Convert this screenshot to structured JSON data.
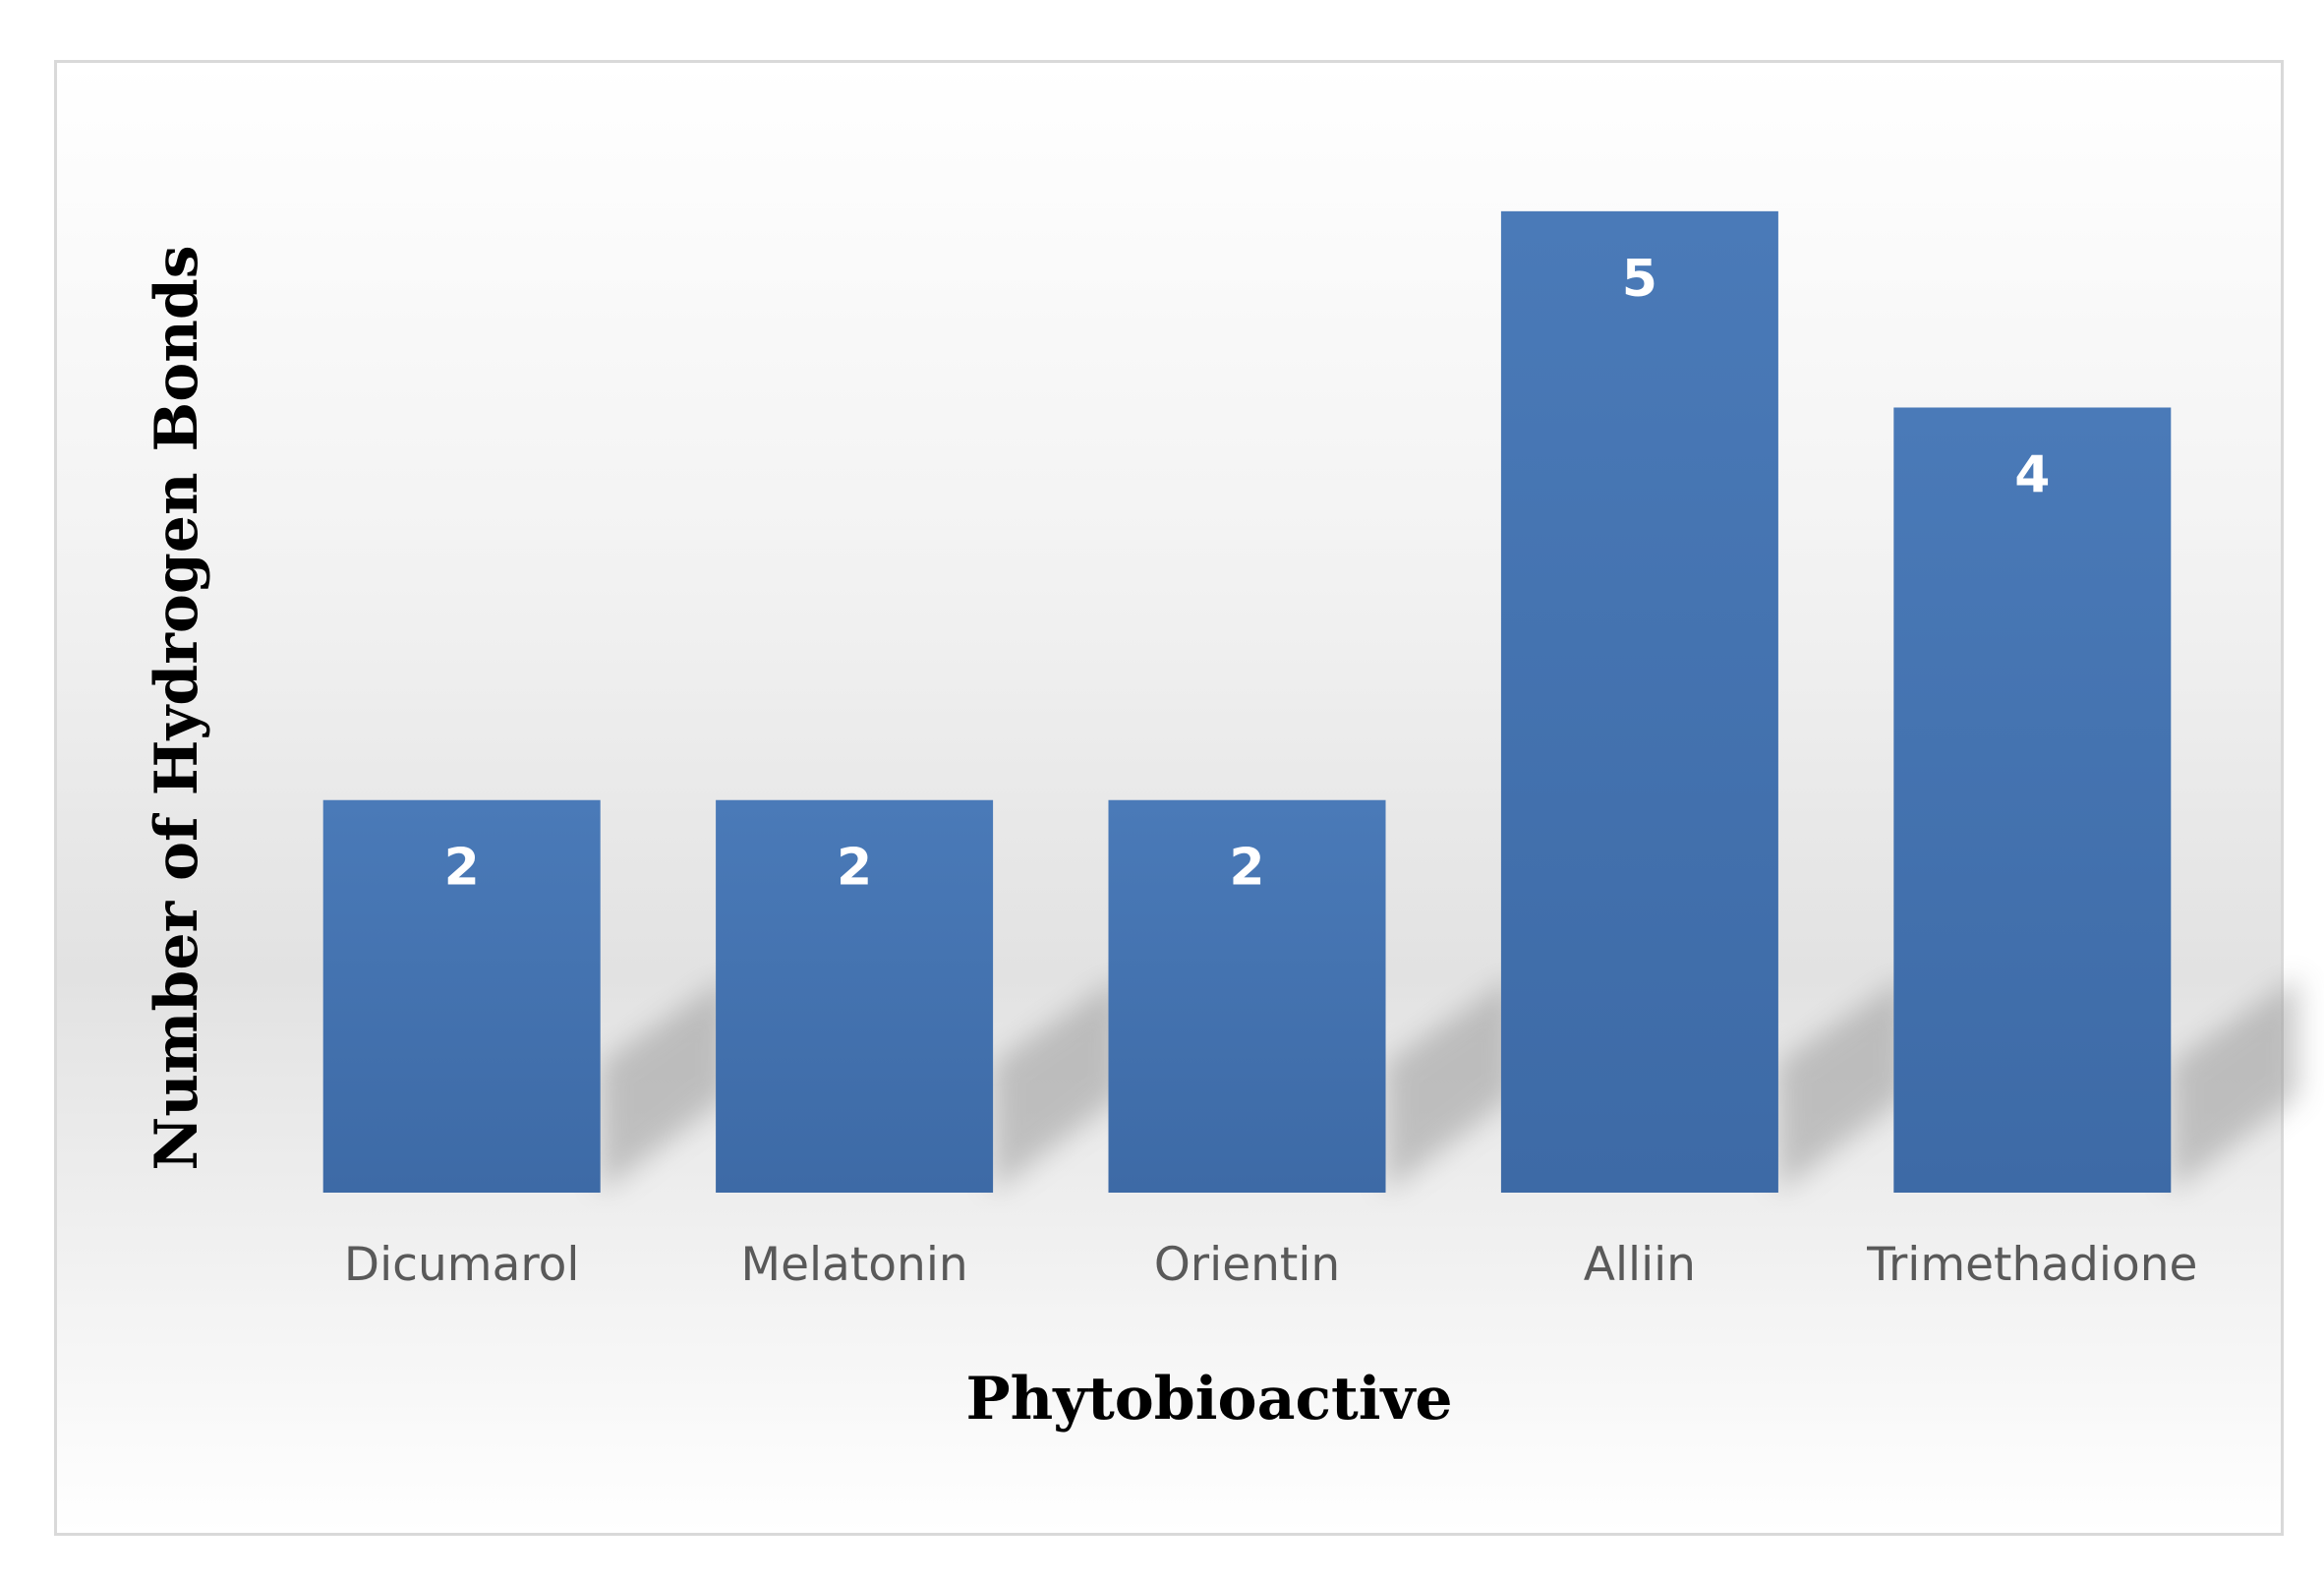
{
  "chart_data": {
    "type": "bar",
    "title": "",
    "xlabel": "Phytobioactive",
    "ylabel": "Number of Hydrogen Bonds",
    "categories": [
      "Dicumarol",
      "Melatonin",
      "Orientin",
      "Alliin",
      "Trimethadione"
    ],
    "values": [
      2,
      2,
      2,
      5,
      4
    ],
    "data_labels": [
      "2",
      "2",
      "2",
      "5",
      "4"
    ],
    "ylim": [
      0,
      5.4
    ],
    "grid": false,
    "legend": "none",
    "bar_color": "#4a7ab8",
    "bar_color_dark": "#3d6aa6",
    "label_color": "#ffffff"
  }
}
